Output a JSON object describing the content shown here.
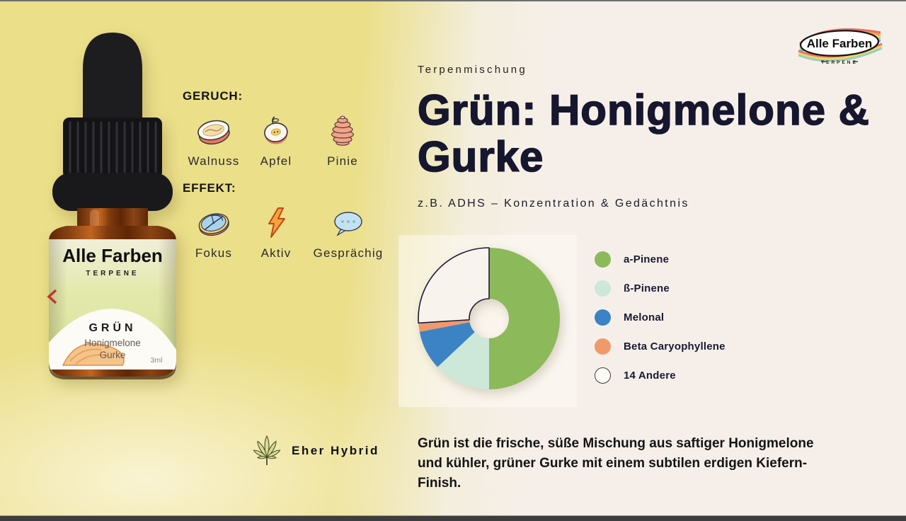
{
  "brand": {
    "name": "Alle Farben",
    "sub": "TERPENE"
  },
  "bottle": {
    "brand": "Alle Farben",
    "brand_sub": "TERPENE",
    "variant": "GRÜN",
    "flavor1": "Honigmelone",
    "flavor2": "Gurke",
    "volume": "3ml"
  },
  "geruch": {
    "heading": "GERUCH:",
    "items": [
      {
        "label": "Walnuss",
        "icon": "walnut-icon"
      },
      {
        "label": "Apfel",
        "icon": "apple-icon"
      },
      {
        "label": "Pinie",
        "icon": "pine-cone-icon"
      }
    ]
  },
  "effekt": {
    "heading": "EFFEKT:",
    "items": [
      {
        "label": "Fokus",
        "icon": "compass-icon"
      },
      {
        "label": "Aktiv",
        "icon": "lightning-icon"
      },
      {
        "label": "Gesprächig",
        "icon": "speech-bubble-icon"
      }
    ]
  },
  "header": {
    "eyebrow": "Terpenmischung",
    "title": "Grün: Honigmelone & Gurke",
    "subtitle": "z.B. ADHS – Konzentration & Gedächtnis"
  },
  "chart_data": {
    "type": "pie",
    "subtype": "donut",
    "start_angle_deg": 0,
    "direction": "clockwise",
    "inner_radius_ratio": 0.28,
    "legend_position": "right",
    "units": "% (estimated from arc angles)",
    "segments": [
      {
        "name": "a-Pinene",
        "value": 50,
        "color": "#8cb95a"
      },
      {
        "name": "ß-Pinene",
        "value": 13,
        "color": "#cde7d9"
      },
      {
        "name": "Melonal",
        "value": 9,
        "color": "#3b83c5"
      },
      {
        "name": "Beta Caryophyllene",
        "value": 2,
        "color": "#f0996c"
      },
      {
        "name": "14 Andere",
        "value": 26,
        "color": "#f8f3ed",
        "outline": "#1c1c38"
      }
    ]
  },
  "hybrid": {
    "label": "Eher Hybrid"
  },
  "description": {
    "text": "Grün ist die frische, süße Mischung aus saftiger Honigmelone und kühler, grüner Gurke mit einem subtilen erdigen Kiefern-Finish."
  }
}
